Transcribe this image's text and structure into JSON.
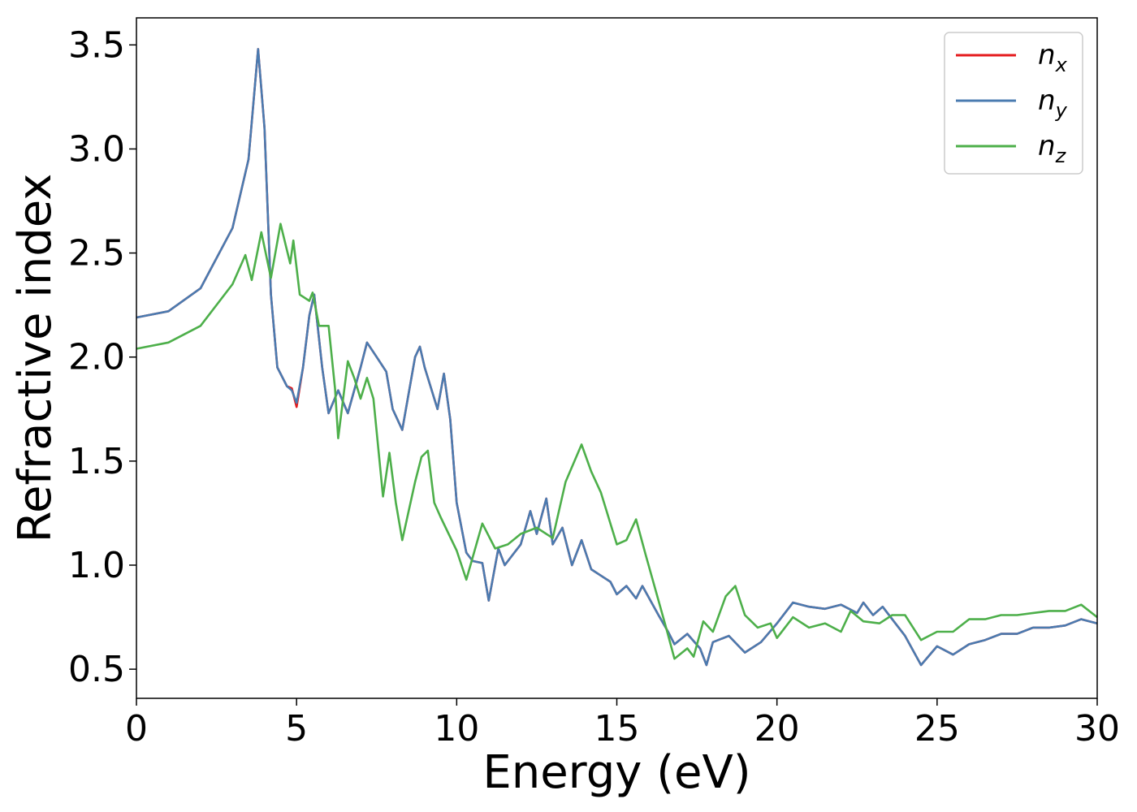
{
  "chart_data": {
    "type": "line",
    "xlabel": "Energy (eV)",
    "ylabel": "Refractive index",
    "xlim": [
      0,
      30
    ],
    "ylim": [
      0.36,
      3.63
    ],
    "xticks": [
      "0",
      "5",
      "10",
      "15",
      "20",
      "25",
      "30"
    ],
    "yticks": [
      "0.5",
      "1.0",
      "1.5",
      "2.0",
      "2.5",
      "3.0",
      "3.5"
    ],
    "grid": false,
    "legend": "top-right",
    "series": [
      {
        "name": "n",
        "sub": "x",
        "color": "#e41a1c",
        "points": [
          [
            0,
            2.19
          ],
          [
            1,
            2.22
          ],
          [
            2,
            2.33
          ],
          [
            3,
            2.62
          ],
          [
            3.5,
            2.95
          ],
          [
            3.8,
            3.48
          ],
          [
            4.0,
            3.1
          ],
          [
            4.2,
            2.3
          ],
          [
            4.4,
            1.95
          ],
          [
            4.7,
            1.86
          ],
          [
            4.85,
            1.85
          ],
          [
            5.0,
            1.76
          ],
          [
            5.2,
            1.95
          ],
          [
            5.4,
            2.2
          ],
          [
            5.55,
            2.3
          ],
          [
            5.8,
            1.95
          ],
          [
            6.0,
            1.73
          ],
          [
            6.3,
            1.84
          ],
          [
            6.6,
            1.73
          ],
          [
            7.0,
            1.95
          ],
          [
            7.2,
            2.07
          ],
          [
            7.5,
            2.0
          ],
          [
            7.8,
            1.93
          ],
          [
            8.0,
            1.75
          ],
          [
            8.3,
            1.65
          ],
          [
            8.7,
            2.0
          ],
          [
            8.85,
            2.05
          ],
          [
            9.0,
            1.95
          ],
          [
            9.4,
            1.75
          ],
          [
            9.6,
            1.92
          ],
          [
            9.8,
            1.7
          ],
          [
            10.0,
            1.3
          ],
          [
            10.3,
            1.06
          ],
          [
            10.5,
            1.02
          ],
          [
            10.8,
            1.01
          ],
          [
            11.0,
            0.83
          ],
          [
            11.3,
            1.08
          ],
          [
            11.5,
            1.0
          ],
          [
            12.0,
            1.1
          ],
          [
            12.3,
            1.26
          ],
          [
            12.5,
            1.15
          ],
          [
            12.8,
            1.32
          ],
          [
            13.0,
            1.1
          ],
          [
            13.3,
            1.18
          ],
          [
            13.6,
            1.0
          ],
          [
            13.9,
            1.12
          ],
          [
            14.2,
            0.98
          ],
          [
            14.5,
            0.95
          ],
          [
            14.8,
            0.92
          ],
          [
            15.0,
            0.86
          ],
          [
            15.3,
            0.9
          ],
          [
            15.6,
            0.84
          ],
          [
            15.8,
            0.9
          ],
          [
            16.3,
            0.76
          ],
          [
            16.6,
            0.68
          ],
          [
            16.8,
            0.62
          ],
          [
            17.2,
            0.67
          ],
          [
            17.6,
            0.6
          ],
          [
            17.8,
            0.52
          ],
          [
            18.0,
            0.63
          ],
          [
            18.5,
            0.66
          ],
          [
            19.0,
            0.58
          ],
          [
            19.5,
            0.63
          ],
          [
            20.0,
            0.72
          ],
          [
            20.5,
            0.82
          ],
          [
            21.0,
            0.8
          ],
          [
            21.5,
            0.79
          ],
          [
            22.0,
            0.81
          ],
          [
            22.5,
            0.77
          ],
          [
            22.7,
            0.82
          ],
          [
            23.0,
            0.76
          ],
          [
            23.3,
            0.8
          ],
          [
            23.6,
            0.74
          ],
          [
            24.0,
            0.66
          ],
          [
            24.5,
            0.52
          ],
          [
            25.0,
            0.61
          ],
          [
            25.5,
            0.57
          ],
          [
            26.0,
            0.62
          ],
          [
            26.5,
            0.64
          ],
          [
            27.0,
            0.67
          ],
          [
            27.5,
            0.67
          ],
          [
            28.0,
            0.7
          ],
          [
            28.5,
            0.7
          ],
          [
            29.0,
            0.71
          ],
          [
            29.5,
            0.74
          ],
          [
            30.0,
            0.72
          ]
        ]
      },
      {
        "name": "n",
        "sub": "y",
        "color": "#4a7bb0",
        "points": [
          [
            0,
            2.19
          ],
          [
            1,
            2.22
          ],
          [
            2,
            2.33
          ],
          [
            3,
            2.62
          ],
          [
            3.5,
            2.95
          ],
          [
            3.8,
            3.48
          ],
          [
            4.0,
            3.1
          ],
          [
            4.2,
            2.3
          ],
          [
            4.4,
            1.95
          ],
          [
            4.7,
            1.86
          ],
          [
            4.85,
            1.84
          ],
          [
            5.0,
            1.78
          ],
          [
            5.2,
            1.95
          ],
          [
            5.4,
            2.2
          ],
          [
            5.55,
            2.3
          ],
          [
            5.8,
            1.95
          ],
          [
            6.0,
            1.73
          ],
          [
            6.3,
            1.84
          ],
          [
            6.6,
            1.73
          ],
          [
            7.0,
            1.95
          ],
          [
            7.2,
            2.07
          ],
          [
            7.5,
            2.0
          ],
          [
            7.8,
            1.93
          ],
          [
            8.0,
            1.75
          ],
          [
            8.3,
            1.65
          ],
          [
            8.7,
            2.0
          ],
          [
            8.85,
            2.05
          ],
          [
            9.0,
            1.95
          ],
          [
            9.4,
            1.75
          ],
          [
            9.6,
            1.92
          ],
          [
            9.8,
            1.7
          ],
          [
            10.0,
            1.3
          ],
          [
            10.3,
            1.06
          ],
          [
            10.5,
            1.02
          ],
          [
            10.8,
            1.01
          ],
          [
            11.0,
            0.83
          ],
          [
            11.3,
            1.08
          ],
          [
            11.5,
            1.0
          ],
          [
            12.0,
            1.1
          ],
          [
            12.3,
            1.26
          ],
          [
            12.5,
            1.15
          ],
          [
            12.8,
            1.32
          ],
          [
            13.0,
            1.1
          ],
          [
            13.3,
            1.18
          ],
          [
            13.6,
            1.0
          ],
          [
            13.9,
            1.12
          ],
          [
            14.2,
            0.98
          ],
          [
            14.5,
            0.95
          ],
          [
            14.8,
            0.92
          ],
          [
            15.0,
            0.86
          ],
          [
            15.3,
            0.9
          ],
          [
            15.6,
            0.84
          ],
          [
            15.8,
            0.9
          ],
          [
            16.3,
            0.76
          ],
          [
            16.6,
            0.68
          ],
          [
            16.8,
            0.62
          ],
          [
            17.2,
            0.67
          ],
          [
            17.6,
            0.6
          ],
          [
            17.8,
            0.52
          ],
          [
            18.0,
            0.63
          ],
          [
            18.5,
            0.66
          ],
          [
            19.0,
            0.58
          ],
          [
            19.5,
            0.63
          ],
          [
            20.0,
            0.72
          ],
          [
            20.5,
            0.82
          ],
          [
            21.0,
            0.8
          ],
          [
            21.5,
            0.79
          ],
          [
            22.0,
            0.81
          ],
          [
            22.5,
            0.77
          ],
          [
            22.7,
            0.82
          ],
          [
            23.0,
            0.76
          ],
          [
            23.3,
            0.8
          ],
          [
            23.6,
            0.74
          ],
          [
            24.0,
            0.66
          ],
          [
            24.5,
            0.52
          ],
          [
            25.0,
            0.61
          ],
          [
            25.5,
            0.57
          ],
          [
            26.0,
            0.62
          ],
          [
            26.5,
            0.64
          ],
          [
            27.0,
            0.67
          ],
          [
            27.5,
            0.67
          ],
          [
            28.0,
            0.7
          ],
          [
            28.5,
            0.7
          ],
          [
            29.0,
            0.71
          ],
          [
            29.5,
            0.74
          ],
          [
            30.0,
            0.72
          ]
        ]
      },
      {
        "name": "n",
        "sub": "z",
        "color": "#4daf4a",
        "points": [
          [
            0,
            2.04
          ],
          [
            1,
            2.07
          ],
          [
            2,
            2.15
          ],
          [
            3,
            2.35
          ],
          [
            3.4,
            2.49
          ],
          [
            3.6,
            2.37
          ],
          [
            3.9,
            2.6
          ],
          [
            4.2,
            2.38
          ],
          [
            4.5,
            2.64
          ],
          [
            4.8,
            2.45
          ],
          [
            4.9,
            2.56
          ],
          [
            5.1,
            2.3
          ],
          [
            5.4,
            2.27
          ],
          [
            5.5,
            2.31
          ],
          [
            5.7,
            2.15
          ],
          [
            6.0,
            2.15
          ],
          [
            6.2,
            1.85
          ],
          [
            6.3,
            1.61
          ],
          [
            6.6,
            1.98
          ],
          [
            6.8,
            1.9
          ],
          [
            7.0,
            1.8
          ],
          [
            7.2,
            1.9
          ],
          [
            7.4,
            1.8
          ],
          [
            7.7,
            1.33
          ],
          [
            7.9,
            1.54
          ],
          [
            8.1,
            1.3
          ],
          [
            8.3,
            1.12
          ],
          [
            8.7,
            1.4
          ],
          [
            8.9,
            1.52
          ],
          [
            9.1,
            1.55
          ],
          [
            9.3,
            1.3
          ],
          [
            9.5,
            1.23
          ],
          [
            10.0,
            1.07
          ],
          [
            10.3,
            0.93
          ],
          [
            10.8,
            1.2
          ],
          [
            11.2,
            1.08
          ],
          [
            11.6,
            1.1
          ],
          [
            12.0,
            1.15
          ],
          [
            12.5,
            1.18
          ],
          [
            13.0,
            1.13
          ],
          [
            13.4,
            1.4
          ],
          [
            13.9,
            1.58
          ],
          [
            14.2,
            1.45
          ],
          [
            14.5,
            1.35
          ],
          [
            14.8,
            1.2
          ],
          [
            15.0,
            1.1
          ],
          [
            15.3,
            1.12
          ],
          [
            15.6,
            1.22
          ],
          [
            15.9,
            1.05
          ],
          [
            16.5,
            0.72
          ],
          [
            16.8,
            0.55
          ],
          [
            17.2,
            0.6
          ],
          [
            17.4,
            0.56
          ],
          [
            17.7,
            0.73
          ],
          [
            18.0,
            0.68
          ],
          [
            18.4,
            0.85
          ],
          [
            18.7,
            0.9
          ],
          [
            19.0,
            0.76
          ],
          [
            19.4,
            0.7
          ],
          [
            19.8,
            0.72
          ],
          [
            20.0,
            0.65
          ],
          [
            20.5,
            0.75
          ],
          [
            21.0,
            0.7
          ],
          [
            21.5,
            0.72
          ],
          [
            22.0,
            0.68
          ],
          [
            22.3,
            0.78
          ],
          [
            22.7,
            0.73
          ],
          [
            23.2,
            0.72
          ],
          [
            23.6,
            0.76
          ],
          [
            24.0,
            0.76
          ],
          [
            24.5,
            0.64
          ],
          [
            25.0,
            0.68
          ],
          [
            25.5,
            0.68
          ],
          [
            26.0,
            0.74
          ],
          [
            26.5,
            0.74
          ],
          [
            27.0,
            0.76
          ],
          [
            27.5,
            0.76
          ],
          [
            28.0,
            0.77
          ],
          [
            28.5,
            0.78
          ],
          [
            29.0,
            0.78
          ],
          [
            29.5,
            0.81
          ],
          [
            30.0,
            0.75
          ]
        ]
      }
    ]
  }
}
